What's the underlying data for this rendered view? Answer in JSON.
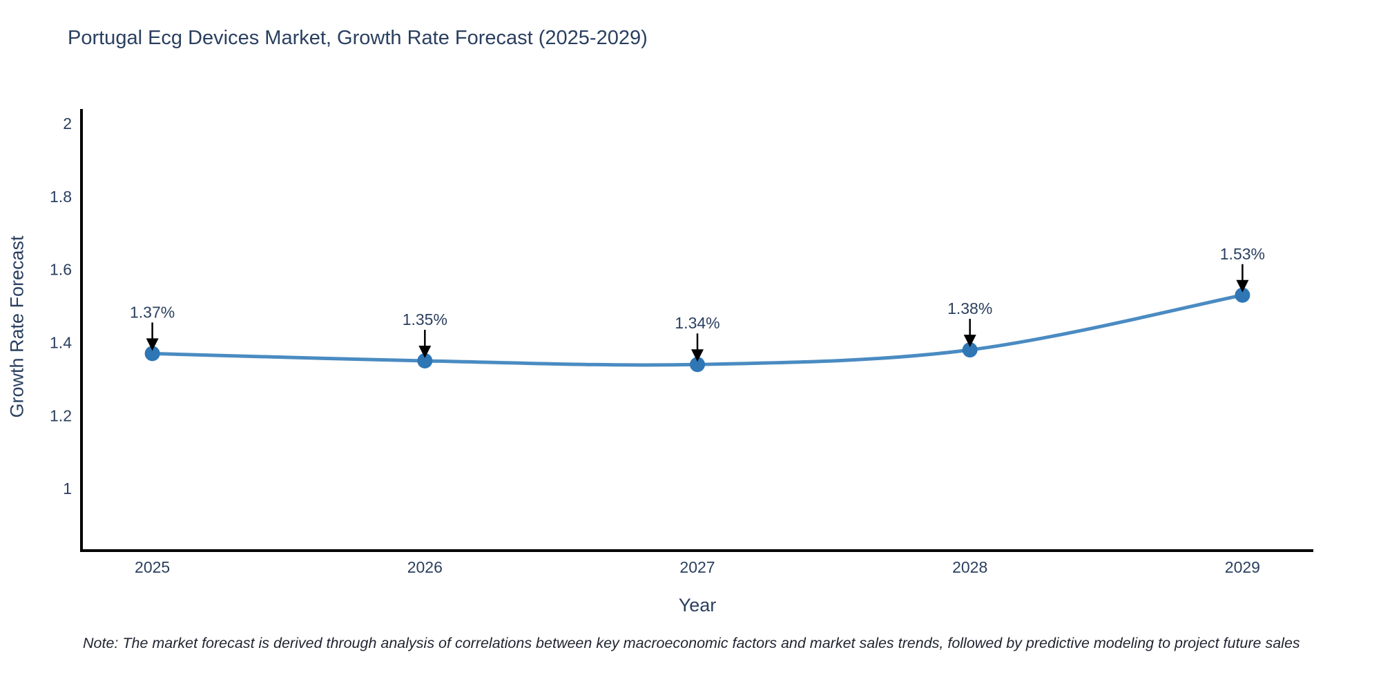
{
  "title": "Portugal Ecg Devices Market, Growth Rate Forecast (2025-2029)",
  "footnote": "Note: The market forecast is derived through analysis of correlations between key macroeconomic factors and market sales trends, followed by predictive modeling to project future sales",
  "chart_data": {
    "type": "line",
    "title": "Portugal Ecg Devices Market, Growth Rate Forecast (2025-2029)",
    "xlabel": "Year",
    "ylabel": "Growth Rate Forecast",
    "x": [
      2025,
      2026,
      2027,
      2028,
      2029
    ],
    "values": [
      1.37,
      1.35,
      1.34,
      1.38,
      1.53
    ],
    "point_labels": [
      "1.37%",
      "1.35%",
      "1.34%",
      "1.38%",
      "1.53%"
    ],
    "xtick_labels": [
      "2025",
      "2026",
      "2027",
      "2028",
      "2029"
    ],
    "yticks": [
      1,
      1.2,
      1.4,
      1.6,
      1.8,
      2
    ],
    "ytick_labels": [
      "1",
      "1.2",
      "1.4",
      "1.6",
      "1.8",
      "2"
    ],
    "xlim": [
      2024.74,
      2029.26
    ],
    "ylim": [
      0.83,
      2.04
    ],
    "grid": false,
    "legend": "none",
    "line_shape": "spline",
    "colors": {
      "line": "#4a8bc2",
      "marker": "#2f76b5",
      "axis": "#000000",
      "tick_text": "#2a3f5f",
      "annotation_text": "#2a3f5f",
      "annotation_arrow": "#000000",
      "background": "#ffffff"
    }
  }
}
